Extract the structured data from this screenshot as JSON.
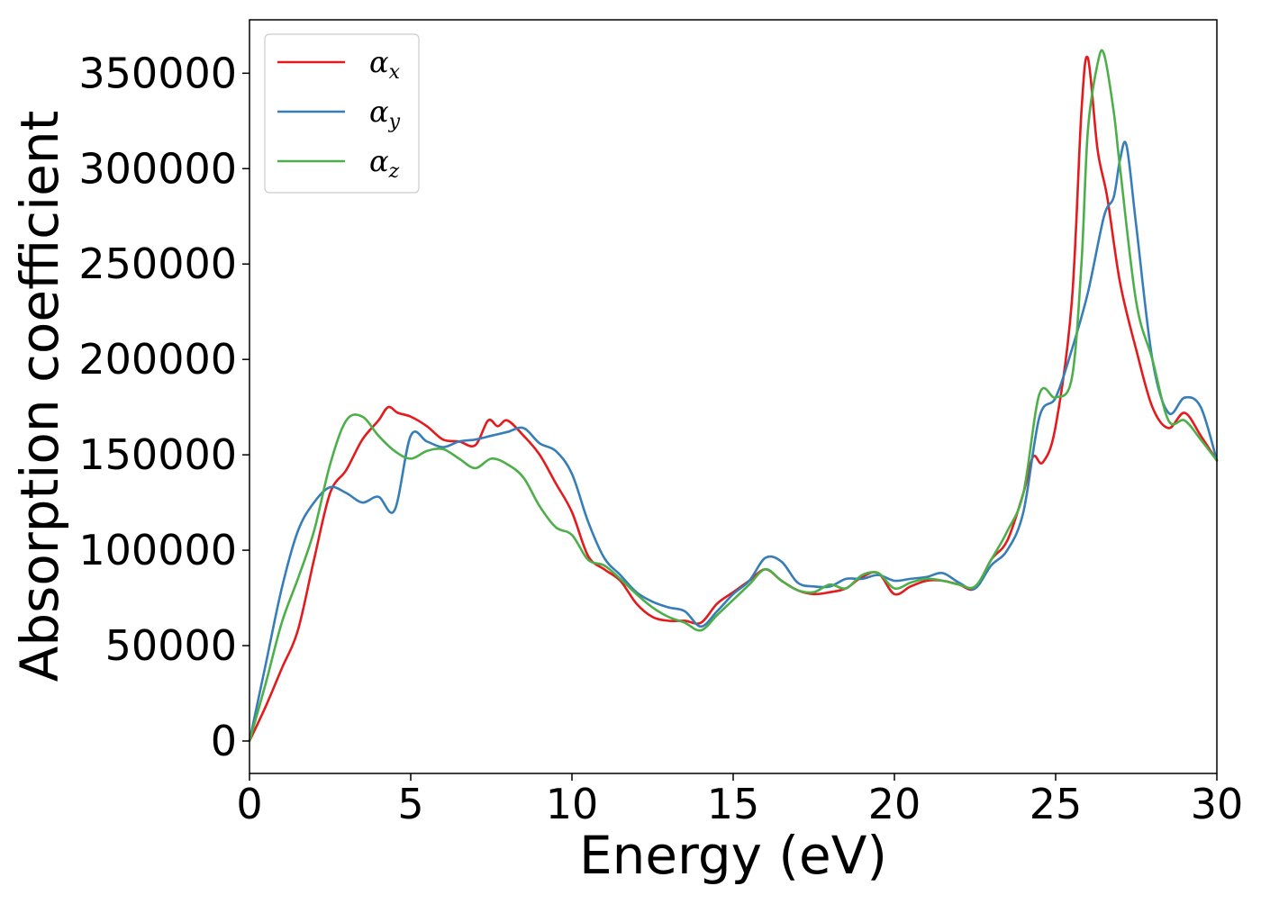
{
  "chart_data": {
    "type": "line",
    "title": "",
    "xlabel": "Energy (eV)",
    "ylabel": "Absorption coefficient",
    "xlim": [
      0,
      30
    ],
    "ylim": [
      -17000,
      378000
    ],
    "xticks": [
      0,
      5,
      10,
      15,
      20,
      25,
      30
    ],
    "yticks": [
      0,
      50000,
      100000,
      150000,
      200000,
      250000,
      300000,
      350000
    ],
    "grid": false,
    "legend_position": "top-left",
    "series": [
      {
        "name": "αx",
        "legend_base": "α",
        "legend_sub": "x",
        "color": "#e41a1c",
        "x": [
          0,
          0.5,
          1.0,
          1.5,
          2.0,
          2.5,
          3.0,
          3.5,
          4.0,
          4.3,
          4.6,
          5.0,
          5.5,
          6.0,
          6.5,
          7.0,
          7.4,
          7.7,
          8.0,
          8.5,
          9.0,
          9.5,
          10.0,
          10.5,
          11.0,
          11.5,
          12.0,
          12.5,
          13.0,
          13.5,
          14.0,
          14.5,
          15.0,
          15.5,
          16.0,
          16.5,
          17.0,
          17.5,
          18.0,
          18.5,
          19.0,
          19.5,
          20.0,
          20.5,
          21.0,
          21.5,
          22.0,
          22.5,
          23.0,
          23.5,
          24.0,
          24.3,
          24.6,
          25.0,
          25.5,
          25.8,
          26.0,
          26.3,
          26.6,
          27.0,
          27.5,
          28.0,
          28.5,
          29.0,
          29.5,
          30.0
        ],
        "values": [
          0,
          18000,
          38000,
          58000,
          95000,
          130000,
          142000,
          158000,
          168000,
          175000,
          172000,
          170000,
          165000,
          158000,
          157000,
          155000,
          168000,
          165000,
          168000,
          160000,
          150000,
          135000,
          120000,
          97000,
          90000,
          84000,
          72000,
          65000,
          63000,
          63000,
          62000,
          72000,
          78000,
          84000,
          90000,
          84000,
          79000,
          77000,
          78000,
          80000,
          86000,
          88000,
          77000,
          81000,
          84000,
          84000,
          82000,
          80000,
          95000,
          105000,
          130000,
          149000,
          146000,
          165000,
          230000,
          330000,
          358000,
          310000,
          285000,
          240000,
          205000,
          175000,
          164000,
          172000,
          160000,
          147000
        ]
      },
      {
        "name": "αy",
        "legend_base": "α",
        "legend_sub": "y",
        "color": "#377eb8",
        "x": [
          0,
          0.5,
          1.0,
          1.5,
          2.0,
          2.5,
          3.0,
          3.5,
          4.0,
          4.5,
          5.0,
          5.5,
          6.0,
          6.5,
          7.0,
          7.5,
          8.0,
          8.5,
          9.0,
          9.5,
          10.0,
          10.5,
          11.0,
          11.5,
          12.0,
          12.5,
          13.0,
          13.5,
          14.0,
          14.5,
          15.0,
          15.5,
          16.0,
          16.5,
          17.0,
          17.5,
          18.0,
          18.5,
          19.0,
          19.5,
          20.0,
          20.5,
          21.0,
          21.5,
          22.0,
          22.5,
          23.0,
          23.5,
          24.0,
          24.5,
          25.0,
          25.5,
          26.0,
          26.5,
          26.8,
          27.0,
          27.2,
          27.5,
          28.0,
          28.5,
          29.0,
          29.5,
          30.0
        ],
        "values": [
          0,
          40000,
          80000,
          110000,
          125000,
          133000,
          130000,
          125000,
          128000,
          121000,
          160000,
          157000,
          154000,
          157000,
          158000,
          160000,
          162000,
          164000,
          156000,
          152000,
          140000,
          115000,
          96000,
          87000,
          78000,
          73000,
          70000,
          68000,
          60000,
          68000,
          77000,
          84000,
          96000,
          94000,
          83000,
          81000,
          81000,
          85000,
          85000,
          87000,
          84000,
          85000,
          86000,
          88000,
          83000,
          80000,
          92000,
          100000,
          120000,
          170000,
          180000,
          205000,
          235000,
          275000,
          285000,
          305000,
          312000,
          270000,
          200000,
          172000,
          180000,
          175000,
          147000
        ]
      },
      {
        "name": "αz",
        "legend_base": "α",
        "legend_sub": "z",
        "color": "#4daf4a",
        "x": [
          0,
          0.5,
          1.0,
          1.5,
          2.0,
          2.5,
          3.0,
          3.5,
          4.0,
          4.5,
          5.0,
          5.5,
          6.0,
          6.5,
          7.0,
          7.5,
          8.0,
          8.5,
          9.0,
          9.5,
          10.0,
          10.5,
          11.0,
          11.5,
          12.0,
          12.5,
          13.0,
          13.5,
          14.0,
          14.5,
          15.0,
          15.5,
          16.0,
          16.5,
          17.0,
          17.5,
          18.0,
          18.5,
          19.0,
          19.5,
          20.0,
          20.5,
          21.0,
          21.5,
          22.0,
          22.5,
          23.0,
          23.5,
          24.0,
          24.5,
          25.0,
          25.5,
          25.8,
          26.0,
          26.3,
          26.5,
          26.8,
          27.0,
          27.5,
          28.0,
          28.5,
          29.0,
          29.5,
          30.0
        ],
        "values": [
          0,
          30000,
          62000,
          85000,
          110000,
          145000,
          168000,
          170000,
          160000,
          152000,
          148000,
          152000,
          153000,
          148000,
          143000,
          148000,
          145000,
          138000,
          123000,
          112000,
          108000,
          95000,
          92000,
          85000,
          77000,
          70000,
          65000,
          62000,
          58000,
          66000,
          74000,
          82000,
          90000,
          84000,
          79000,
          78000,
          82000,
          80000,
          87000,
          88000,
          80000,
          83000,
          85000,
          84000,
          82000,
          81000,
          95000,
          110000,
          130000,
          182000,
          180000,
          190000,
          250000,
          320000,
          355000,
          360000,
          330000,
          300000,
          230000,
          200000,
          168000,
          168000,
          158000,
          147000
        ]
      }
    ]
  }
}
